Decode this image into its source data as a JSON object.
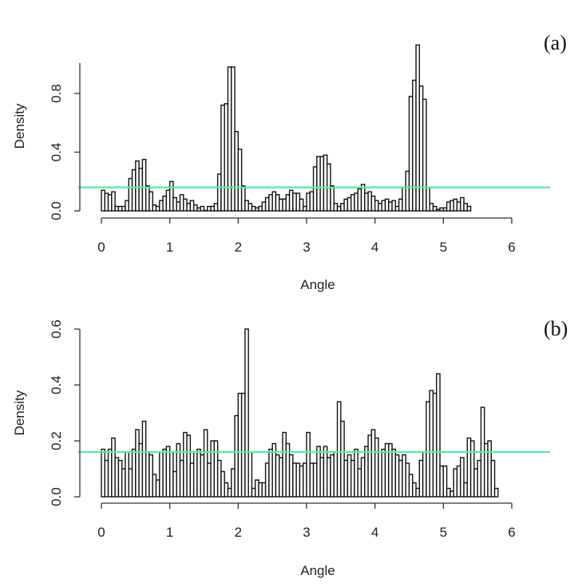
{
  "chart_data": [
    {
      "type": "bar",
      "panel_label": "(a)",
      "xlabel": "Angle",
      "ylabel": "Density",
      "xlim": [
        0,
        6.3
      ],
      "ylim": [
        0,
        1.0
      ],
      "xticks": [
        "0",
        "1",
        "2",
        "3",
        "4",
        "5",
        "6"
      ],
      "yticks": [
        "0.0",
        "0.4",
        "0.8"
      ],
      "bin_width": 0.05,
      "bin_start": 0,
      "reference_line": {
        "value": 0.16,
        "color": "#5ee6a0"
      },
      "bar_color": "#ffffff",
      "values": [
        0.14,
        0.12,
        0.11,
        0.13,
        0.03,
        0.03,
        0.03,
        0.07,
        0.22,
        0.28,
        0.34,
        0.29,
        0.35,
        0.17,
        0.13,
        0.04,
        0.03,
        0.07,
        0.1,
        0.14,
        0.2,
        0.09,
        0.06,
        0.11,
        0.08,
        0.05,
        0.07,
        0.04,
        0.02,
        0.03,
        0.0,
        0.03,
        0.03,
        0.05,
        0.25,
        0.72,
        0.73,
        0.98,
        0.98,
        0.54,
        0.42,
        0.17,
        0.07,
        0.05,
        0.03,
        0.02,
        0.03,
        0.06,
        0.09,
        0.11,
        0.13,
        0.11,
        0.08,
        0.08,
        0.11,
        0.14,
        0.12,
        0.12,
        0.08,
        0.03,
        0.12,
        0.13,
        0.3,
        0.37,
        0.37,
        0.38,
        0.32,
        0.17,
        0.05,
        0.03,
        0.05,
        0.08,
        0.09,
        0.11,
        0.12,
        0.15,
        0.18,
        0.12,
        0.13,
        0.1,
        0.07,
        0.05,
        0.07,
        0.08,
        0.06,
        0.07,
        0.03,
        0.08,
        0.16,
        0.27,
        0.78,
        0.89,
        1.13,
        0.85,
        0.76,
        0.16,
        0.05,
        0.03,
        0.01,
        0.02,
        0.02,
        0.06,
        0.07,
        0.08,
        0.06,
        0.09,
        0.05,
        0.03
      ]
    },
    {
      "type": "bar",
      "panel_label": "(b)",
      "xlabel": "Angle",
      "ylabel": "Density",
      "xlim": [
        0,
        6.3
      ],
      "ylim": [
        0,
        0.62
      ],
      "xticks": [
        "0",
        "1",
        "2",
        "3",
        "4",
        "5",
        "6"
      ],
      "yticks": [
        "0.0",
        "0.2",
        "0.4",
        "0.6"
      ],
      "bin_width": 0.05,
      "bin_start": 0,
      "reference_line": {
        "value": 0.16,
        "color": "#5ee6a0"
      },
      "bar_color": "#ffffff",
      "values": [
        0.17,
        0.13,
        0.17,
        0.21,
        0.14,
        0.13,
        0.1,
        0.16,
        0.1,
        0.17,
        0.24,
        0.19,
        0.27,
        0.16,
        0.15,
        0.08,
        0.06,
        0.16,
        0.17,
        0.18,
        0.16,
        0.09,
        0.19,
        0.13,
        0.23,
        0.22,
        0.12,
        0.16,
        0.17,
        0.15,
        0.24,
        0.12,
        0.2,
        0.2,
        0.13,
        0.09,
        0.05,
        0.03,
        0.1,
        0.29,
        0.37,
        0.37,
        0.6,
        0.16,
        0.03,
        0.06,
        0.05,
        0.05,
        0.12,
        0.17,
        0.19,
        0.15,
        0.14,
        0.23,
        0.19,
        0.15,
        0.12,
        0.12,
        0.11,
        0.12,
        0.23,
        0.12,
        0.12,
        0.18,
        0.14,
        0.18,
        0.14,
        0.15,
        0.16,
        0.34,
        0.27,
        0.13,
        0.15,
        0.13,
        0.17,
        0.1,
        0.14,
        0.18,
        0.22,
        0.24,
        0.21,
        0.16,
        0.17,
        0.19,
        0.19,
        0.17,
        0.15,
        0.13,
        0.15,
        0.12,
        0.08,
        0.05,
        0.03,
        0.13,
        0.16,
        0.34,
        0.38,
        0.37,
        0.44,
        0.11,
        0.11,
        0.03,
        0.02,
        0.1,
        0.11,
        0.14,
        0.05,
        0.21,
        0.2,
        0.1,
        0.13,
        0.32,
        0.19,
        0.2,
        0.13,
        0.03
      ]
    }
  ]
}
